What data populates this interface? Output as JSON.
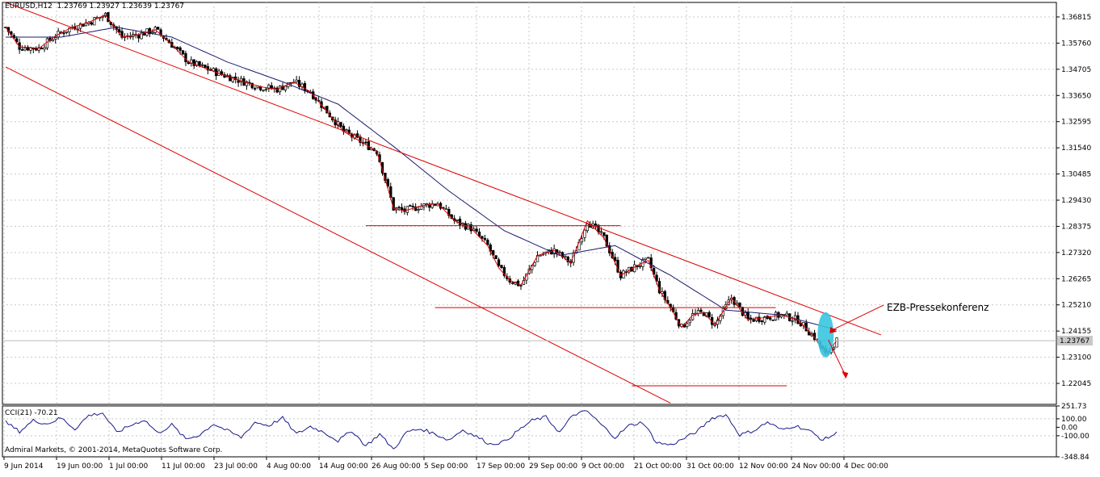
{
  "header": {
    "symbol": "EURUSD,H12",
    "ohlc": "1.23769 1.23927 1.23639 1.23767"
  },
  "indicator": {
    "label": "CCI(21) -70.21"
  },
  "copyright": "Admiral Markets, © 2001-2014, MetaQuotes Software Corp.",
  "annotation": "EZB-Pressekonferenz",
  "current_price_label": "1.23767",
  "colors": {
    "bull": "#ffffff",
    "bear": "#000000",
    "trend": "#dd0000",
    "ma": "#1a1a6e",
    "cci": "#1a1a8a",
    "highlight": "#39c5e0",
    "annotation": "#1a1a9a"
  },
  "chart_data": {
    "type": "candlestick",
    "price_axis": {
      "ticks": [
        "1.36815",
        "1.35760",
        "1.34705",
        "1.33650",
        "1.32595",
        "1.31540",
        "1.30485",
        "1.29430",
        "1.28375",
        "1.27320",
        "1.26265",
        "1.25210",
        "1.24155",
        "1.23100",
        "1.22045"
      ],
      "range": [
        1.212,
        1.374
      ]
    },
    "cci_axis": {
      "ticks": [
        "251.73",
        "100.00",
        "0.00",
        "-100.00",
        "-348.84"
      ],
      "range": [
        -348.84,
        251.73
      ]
    },
    "time_axis": {
      "ticks": [
        "9 Jun 2014",
        "19 Jun 00:00",
        "1 Jul 00:00",
        "11 Jul 00:00",
        "23 Jul 00:00",
        "4 Aug 00:00",
        "14 Aug 00:00",
        "26 Aug 00:00",
        "5 Sep 00:00",
        "17 Sep 00:00",
        "29 Sep 00:00",
        "9 Oct 00:00",
        "21 Oct 00:00",
        "31 Oct 00:00",
        "12 Nov 00:00",
        "24 Nov 00:00",
        "4 Dec 00:00"
      ],
      "bar_count": 257
    },
    "close_path": [
      [
        0,
        1.364
      ],
      [
        5,
        1.356
      ],
      [
        12,
        1.3555
      ],
      [
        18,
        1.3605
      ],
      [
        24,
        1.364
      ],
      [
        30,
        1.366
      ],
      [
        36,
        1.369
      ],
      [
        42,
        1.36
      ],
      [
        48,
        1.361
      ],
      [
        54,
        1.363
      ],
      [
        60,
        1.357
      ],
      [
        66,
        1.35
      ],
      [
        72,
        1.3475
      ],
      [
        78,
        1.345
      ],
      [
        86,
        1.342
      ],
      [
        92,
        1.34
      ],
      [
        98,
        1.339
      ],
      [
        104,
        1.342
      ],
      [
        110,
        1.338
      ],
      [
        116,
        1.33
      ],
      [
        122,
        1.322
      ],
      [
        128,
        1.318
      ],
      [
        134,
        1.314
      ],
      [
        138,
        1.299
      ],
      [
        140,
        1.291
      ],
      [
        144,
        1.29
      ],
      [
        150,
        1.292
      ],
      [
        156,
        1.293
      ],
      [
        162,
        1.286
      ],
      [
        168,
        1.283
      ],
      [
        174,
        1.276
      ],
      [
        178,
        1.267
      ],
      [
        182,
        1.262
      ],
      [
        186,
        1.26
      ],
      [
        192,
        1.272
      ],
      [
        198,
        1.274
      ],
      [
        204,
        1.269
      ],
      [
        210,
        1.286
      ],
      [
        216,
        1.279
      ],
      [
        222,
        1.264
      ],
      [
        228,
        1.268
      ],
      [
        232,
        1.27
      ],
      [
        236,
        1.258
      ],
      [
        240,
        1.251
      ],
      [
        244,
        1.243
      ],
      [
        248,
        1.248
      ],
      [
        252,
        1.249
      ],
      [
        256,
        1.244
      ],
      [
        262,
        1.255
      ],
      [
        268,
        1.246
      ],
      [
        274,
        1.247
      ],
      [
        280,
        1.248
      ],
      [
        286,
        1.246
      ],
      [
        292,
        1.239
      ],
      [
        296,
        1.232
      ],
      [
        300,
        1.2377
      ]
    ],
    "ma_path": [
      [
        0,
        1.36
      ],
      [
        20,
        1.36
      ],
      [
        40,
        1.364
      ],
      [
        60,
        1.36
      ],
      [
        80,
        1.35
      ],
      [
        100,
        1.342
      ],
      [
        120,
        1.333
      ],
      [
        140,
        1.316
      ],
      [
        160,
        1.298
      ],
      [
        180,
        1.282
      ],
      [
        200,
        1.272
      ],
      [
        220,
        1.276
      ],
      [
        240,
        1.264
      ],
      [
        260,
        1.25
      ],
      [
        280,
        1.248
      ],
      [
        300,
        1.242
      ]
    ],
    "cci_path": [
      [
        0,
        60
      ],
      [
        5,
        -50
      ],
      [
        10,
        80
      ],
      [
        15,
        40
      ],
      [
        20,
        110
      ],
      [
        25,
        -20
      ],
      [
        30,
        140
      ],
      [
        35,
        170
      ],
      [
        40,
        -60
      ],
      [
        45,
        20
      ],
      [
        50,
        90
      ],
      [
        55,
        -70
      ],
      [
        60,
        30
      ],
      [
        65,
        -140
      ],
      [
        70,
        -90
      ],
      [
        75,
        40
      ],
      [
        80,
        -40
      ],
      [
        85,
        -120
      ],
      [
        90,
        60
      ],
      [
        95,
        20
      ],
      [
        100,
        110
      ],
      [
        105,
        -80
      ],
      [
        110,
        10
      ],
      [
        115,
        -60
      ],
      [
        120,
        -160
      ],
      [
        125,
        -40
      ],
      [
        130,
        -220
      ],
      [
        135,
        -80
      ],
      [
        140,
        -260
      ],
      [
        145,
        -50
      ],
      [
        150,
        -20
      ],
      [
        155,
        -80
      ],
      [
        160,
        -150
      ],
      [
        165,
        -30
      ],
      [
        170,
        -110
      ],
      [
        175,
        -200
      ],
      [
        180,
        -170
      ],
      [
        185,
        -40
      ],
      [
        190,
        80
      ],
      [
        195,
        120
      ],
      [
        200,
        -60
      ],
      [
        205,
        150
      ],
      [
        210,
        190
      ],
      [
        215,
        30
      ],
      [
        220,
        -120
      ],
      [
        225,
        20
      ],
      [
        230,
        60
      ],
      [
        235,
        -180
      ],
      [
        240,
        -210
      ],
      [
        245,
        -130
      ],
      [
        250,
        -40
      ],
      [
        255,
        110
      ],
      [
        260,
        150
      ],
      [
        265,
        -90
      ],
      [
        270,
        -40
      ],
      [
        275,
        60
      ],
      [
        280,
        -30
      ],
      [
        285,
        20
      ],
      [
        290,
        -40
      ],
      [
        295,
        -150
      ],
      [
        300,
        -70
      ]
    ],
    "trend_lines": [
      {
        "name": "upper-channel",
        "from": [
          0,
          1.374
        ],
        "to": [
          316,
          1.24
        ]
      },
      {
        "name": "lower-channel",
        "from": [
          0,
          1.348
        ],
        "to": [
          240,
          1.2125
        ]
      },
      {
        "name": "support-1",
        "from": [
          130,
          1.284
        ],
        "to": [
          222,
          1.284
        ]
      },
      {
        "name": "support-2",
        "from": [
          155,
          1.251
        ],
        "to": [
          278,
          1.251
        ]
      },
      {
        "name": "support-3",
        "from": [
          226,
          1.2195
        ],
        "to": [
          282,
          1.2195
        ]
      }
    ]
  }
}
